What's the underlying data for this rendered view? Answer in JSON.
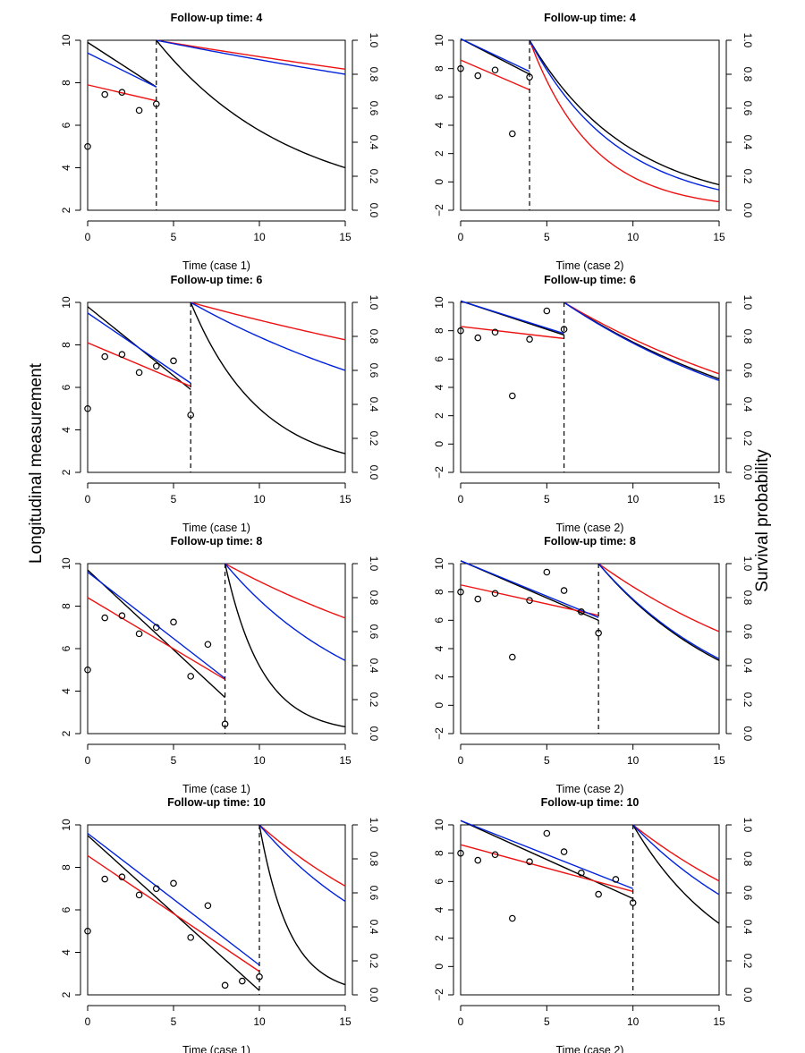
{
  "figure": {
    "left_label": "Longitudinal measurement",
    "right_label": "Survival probability"
  },
  "chart_data": [
    {
      "type": "line",
      "title": "Follow-up time: 4",
      "xlabel": "Time (case 1)",
      "case": 1,
      "t": 4,
      "xlim": [
        0,
        15
      ],
      "ylim_left": [
        2,
        10
      ],
      "ylim_right": [
        0,
        1
      ],
      "xticks": [
        "0",
        "5",
        "10",
        "15"
      ],
      "yticks_left": [
        "2",
        "4",
        "6",
        "8",
        "10"
      ],
      "yticks_right": [
        "0.0",
        "0.2",
        "0.4",
        "0.6",
        "0.8",
        "1.0"
      ],
      "points": [
        [
          0,
          5.0
        ],
        [
          1,
          7.45
        ],
        [
          2,
          7.55
        ],
        [
          3,
          6.7
        ],
        [
          4,
          7.0
        ]
      ],
      "long": {
        "black": [
          9.9,
          7.8
        ],
        "blue": [
          9.4,
          7.8
        ],
        "red": [
          7.9,
          7.15
        ]
      },
      "surv": {
        "black": 0.25,
        "blue": 0.8,
        "red": 0.83
      }
    },
    {
      "type": "line",
      "title": "Follow-up time: 4",
      "xlabel": "Time (case 2)",
      "case": 2,
      "t": 4,
      "xlim": [
        0,
        15
      ],
      "ylim_left": [
        -2,
        10
      ],
      "ylim_right": [
        0,
        1
      ],
      "xticks": [
        "0",
        "5",
        "10",
        "15"
      ],
      "yticks_left": [
        "−2",
        "0",
        "2",
        "4",
        "6",
        "8",
        "10"
      ],
      "yticks_right": [
        "0.0",
        "0.2",
        "0.4",
        "0.6",
        "0.8",
        "1.0"
      ],
      "points": [
        [
          0,
          8.0
        ],
        [
          1,
          7.5
        ],
        [
          2,
          7.9
        ],
        [
          3,
          3.4
        ],
        [
          4,
          7.4
        ]
      ],
      "long": {
        "black": [
          10.1,
          7.6
        ],
        "blue": [
          10.1,
          7.8
        ],
        "red": [
          8.6,
          6.5
        ]
      },
      "surv": {
        "black": 0.15,
        "blue": 0.12,
        "red": 0.05
      }
    },
    {
      "type": "line",
      "title": "Follow-up time: 6",
      "xlabel": "Time (case 1)",
      "case": 1,
      "t": 6,
      "xlim": [
        0,
        15
      ],
      "ylim_left": [
        2,
        10
      ],
      "ylim_right": [
        0,
        1
      ],
      "xticks": [
        "0",
        "5",
        "10",
        "15"
      ],
      "yticks_left": [
        "2",
        "4",
        "6",
        "8",
        "10"
      ],
      "yticks_right": [
        "0.0",
        "0.2",
        "0.4",
        "0.6",
        "0.8",
        "1.0"
      ],
      "points": [
        [
          0,
          5.0
        ],
        [
          1,
          7.45
        ],
        [
          2,
          7.55
        ],
        [
          3,
          6.7
        ],
        [
          4,
          7.0
        ],
        [
          5,
          7.25
        ],
        [
          6,
          4.7
        ]
      ],
      "long": {
        "black": [
          9.8,
          5.9
        ],
        "blue": [
          9.5,
          6.2
        ],
        "red": [
          8.1,
          6.05
        ]
      },
      "surv": {
        "black": 0.11,
        "blue": 0.6,
        "red": 0.78
      }
    },
    {
      "type": "line",
      "title": "Follow-up time: 6",
      "xlabel": "Time (case 2)",
      "case": 2,
      "t": 6,
      "xlim": [
        0,
        15
      ],
      "ylim_left": [
        -2,
        10
      ],
      "ylim_right": [
        0,
        1
      ],
      "xticks": [
        "0",
        "5",
        "10",
        "15"
      ],
      "yticks_left": [
        "−2",
        "0",
        "2",
        "4",
        "6",
        "8",
        "10"
      ],
      "yticks_right": [
        "0.0",
        "0.2",
        "0.4",
        "0.6",
        "0.8",
        "1.0"
      ],
      "points": [
        [
          0,
          8.0
        ],
        [
          1,
          7.5
        ],
        [
          2,
          7.9
        ],
        [
          3,
          3.4
        ],
        [
          4,
          7.4
        ],
        [
          5,
          9.4
        ],
        [
          6,
          8.1
        ]
      ],
      "long": {
        "black": [
          10.1,
          7.7
        ],
        "blue": [
          10.1,
          7.8
        ],
        "red": [
          8.3,
          7.45
        ]
      },
      "surv": {
        "black": 0.55,
        "blue": 0.54,
        "red": 0.58
      }
    },
    {
      "type": "line",
      "title": "Follow-up time: 8",
      "xlabel": "Time (case 1)",
      "case": 1,
      "t": 8,
      "xlim": [
        0,
        15
      ],
      "ylim_left": [
        2,
        10
      ],
      "ylim_right": [
        0,
        1
      ],
      "xticks": [
        "0",
        "5",
        "10",
        "15"
      ],
      "yticks_left": [
        "2",
        "4",
        "6",
        "8",
        "10"
      ],
      "yticks_right": [
        "0.0",
        "0.2",
        "0.4",
        "0.6",
        "0.8",
        "1.0"
      ],
      "points": [
        [
          0,
          5.0
        ],
        [
          1,
          7.45
        ],
        [
          2,
          7.55
        ],
        [
          3,
          6.7
        ],
        [
          4,
          7.0
        ],
        [
          5,
          7.25
        ],
        [
          6,
          4.7
        ],
        [
          7,
          6.2
        ],
        [
          8,
          2.45
        ]
      ],
      "long": {
        "black": [
          9.7,
          3.7
        ],
        "blue": [
          9.6,
          4.6
        ],
        "red": [
          8.4,
          4.55
        ]
      },
      "surv": {
        "black": 0.04,
        "blue": 0.43,
        "red": 0.68
      }
    },
    {
      "type": "line",
      "title": "Follow-up time: 8",
      "xlabel": "Time (case 2)",
      "case": 2,
      "t": 8,
      "xlim": [
        0,
        15
      ],
      "ylim_left": [
        -2,
        10
      ],
      "ylim_right": [
        0,
        1
      ],
      "xticks": [
        "0",
        "5",
        "10",
        "15"
      ],
      "yticks_left": [
        "−2",
        "0",
        "2",
        "4",
        "6",
        "8",
        "10"
      ],
      "yticks_right": [
        "0.0",
        "0.2",
        "0.4",
        "0.6",
        "0.8",
        "1.0"
      ],
      "points": [
        [
          0,
          8.0
        ],
        [
          1,
          7.5
        ],
        [
          2,
          7.9
        ],
        [
          3,
          3.4
        ],
        [
          4,
          7.4
        ],
        [
          5,
          9.4
        ],
        [
          6,
          8.1
        ],
        [
          7,
          6.6
        ],
        [
          8,
          5.1
        ]
      ],
      "long": {
        "black": [
          10.2,
          6.0
        ],
        "blue": [
          10.2,
          6.2
        ],
        "red": [
          8.5,
          6.35
        ]
      },
      "surv": {
        "black": 0.43,
        "blue": 0.44,
        "red": 0.6
      }
    },
    {
      "type": "line",
      "title": "Follow-up time: 10",
      "xlabel": "Time (case 1)",
      "case": 1,
      "t": 10,
      "xlim": [
        0,
        15
      ],
      "ylim_left": [
        2,
        10
      ],
      "ylim_right": [
        0,
        1
      ],
      "xticks": [
        "0",
        "5",
        "10",
        "15"
      ],
      "yticks_left": [
        "2",
        "4",
        "6",
        "8",
        "10"
      ],
      "yticks_right": [
        "0.0",
        "0.2",
        "0.4",
        "0.6",
        "0.8",
        "1.0"
      ],
      "points": [
        [
          0,
          5.0
        ],
        [
          1,
          7.45
        ],
        [
          2,
          7.55
        ],
        [
          3,
          6.7
        ],
        [
          4,
          7.0
        ],
        [
          5,
          7.25
        ],
        [
          6,
          4.7
        ],
        [
          7,
          6.2
        ],
        [
          8,
          2.45
        ],
        [
          9,
          2.65
        ],
        [
          10,
          2.85
        ]
      ],
      "long": {
        "black": [
          9.5,
          2.2
        ],
        "blue": [
          9.6,
          3.4
        ],
        "red": [
          8.55,
          3.1
        ]
      },
      "surv": {
        "black": 0.06,
        "blue": 0.55,
        "red": 0.64
      }
    },
    {
      "type": "line",
      "title": "Follow-up time: 10",
      "xlabel": "Time (case 2)",
      "case": 2,
      "t": 10,
      "xlim": [
        0,
        15
      ],
      "ylim_left": [
        -2,
        10
      ],
      "ylim_right": [
        0,
        1
      ],
      "xticks": [
        "0",
        "5",
        "10",
        "15"
      ],
      "yticks_left": [
        "−2",
        "0",
        "2",
        "4",
        "6",
        "8",
        "10"
      ],
      "yticks_right": [
        "0.0",
        "0.2",
        "0.4",
        "0.6",
        "0.8",
        "1.0"
      ],
      "points": [
        [
          0,
          8.0
        ],
        [
          1,
          7.5
        ],
        [
          2,
          7.9
        ],
        [
          3,
          3.4
        ],
        [
          4,
          7.4
        ],
        [
          5,
          9.4
        ],
        [
          6,
          8.1
        ],
        [
          7,
          6.6
        ],
        [
          8,
          5.1
        ],
        [
          9,
          6.15
        ],
        [
          10,
          4.5
        ]
      ],
      "long": {
        "black": [
          10.3,
          4.8
        ],
        "blue": [
          10.3,
          5.5
        ],
        "red": [
          8.6,
          5.3
        ]
      },
      "surv": {
        "black": 0.42,
        "blue": 0.59,
        "red": 0.67
      }
    }
  ]
}
